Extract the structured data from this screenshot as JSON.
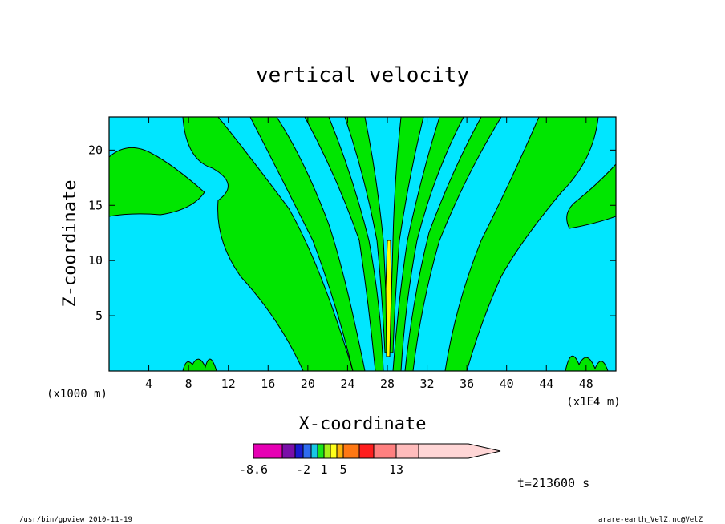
{
  "chart_data": {
    "type": "heatmap",
    "title": "vertical velocity",
    "xlabel": "X-coordinate",
    "ylabel": "Z-coordinate",
    "x_unit": "(x1000 m)",
    "x_unit_right": "(x1E4 m)",
    "xlim": [
      0,
      51
    ],
    "ylim": [
      0,
      23
    ],
    "x_ticks": [
      "4",
      "8",
      "12",
      "16",
      "20",
      "24",
      "28",
      "32",
      "36",
      "40",
      "44",
      "48"
    ],
    "x_tick_values": [
      4,
      8,
      12,
      16,
      20,
      24,
      28,
      32,
      36,
      40,
      44,
      48
    ],
    "y_ticks": [
      "5",
      "10",
      "15",
      "20"
    ],
    "y_tick_values": [
      5,
      10,
      15,
      20
    ],
    "colorbar": {
      "labels": [
        "-8.6",
        "-2",
        "1",
        "5",
        "13"
      ],
      "label_values": [
        -8.6,
        -2,
        1,
        5,
        13
      ],
      "levels": [
        -8.6,
        -6,
        -4,
        -2,
        -1,
        0,
        1,
        2,
        3,
        5,
        8,
        10,
        13,
        18
      ],
      "colors": [
        "#e600b4",
        "#7a0fa8",
        "#1a1ad0",
        "#2e6cf0",
        "#17c8e6",
        "#19e619",
        "#a6f01a",
        "#ffff1a",
        "#ffb40a",
        "#ff7814",
        "#ff1e1e",
        "#ff8080",
        "#ffbcbc",
        "#ffd6d6"
      ]
    },
    "field_colors": {
      "negative": "#00e6ff",
      "positive": "#00e600",
      "max": "#ffff00"
    },
    "time_label": "t=213600 s",
    "grid": false
  },
  "footer": {
    "left": "/usr/bin/gpview   2010-11-19",
    "right": "arare-earth_VelZ.nc@VelZ"
  }
}
